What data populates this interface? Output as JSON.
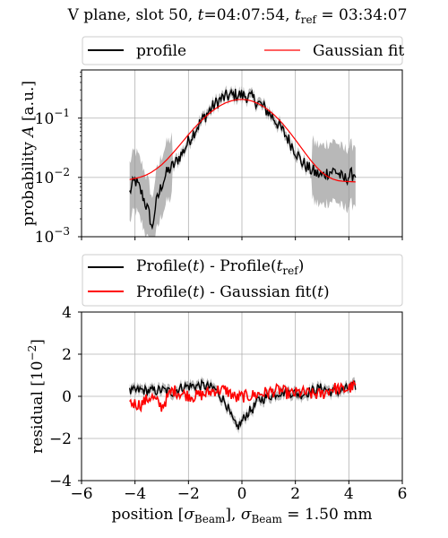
{
  "title": {
    "main": "V plane, slot 50, ",
    "t_sym": "t",
    "t_val": "=04:07:54, ",
    "tref_sym": "t",
    "tref_sub": "ref",
    "tref_val": " = 03:34:07"
  },
  "colors": {
    "profile": "#000000",
    "fit": "#ff0000",
    "band": "#9a9a9a",
    "grid": "#b0b0b0"
  },
  "chart_data": [
    {
      "type": "line",
      "yscale": "log",
      "ylim": [
        0.001,
        0.65
      ],
      "xlim": [
        -6,
        6
      ],
      "grid": true,
      "legend_position": "top",
      "ylabel": {
        "pre": "probability ",
        "sym": "A",
        "post": " [a.u.]"
      },
      "y_ticks": [
        {
          "v": 0.001,
          "mant": "10",
          "exp": "−3"
        },
        {
          "v": 0.01,
          "mant": "10",
          "exp": "−2"
        },
        {
          "v": 0.1,
          "mant": "10",
          "exp": "−1"
        }
      ],
      "series": [
        {
          "name": "profile",
          "key": "profile",
          "sigma": 0.5,
          "noise": 0.12,
          "x": [
            -4.2,
            -4.0,
            -3.8,
            -3.6,
            -3.45,
            -3.35,
            -3.25,
            -3.1,
            -3.0,
            -2.8,
            -2.5,
            -2.2,
            -2.0,
            -1.8,
            -1.5,
            -1.2,
            -1.0,
            -0.8,
            -0.5,
            -0.2,
            0.0,
            0.2,
            0.5,
            0.8,
            1.0,
            1.2,
            1.5,
            1.8,
            2.0,
            2.2,
            2.5,
            2.8,
            3.0,
            3.2,
            3.5,
            3.8,
            4.0,
            4.25
          ],
          "y": [
            0.0055,
            0.009,
            0.006,
            0.0035,
            0.0022,
            0.0012,
            0.003,
            0.0052,
            0.0075,
            0.012,
            0.017,
            0.027,
            0.04,
            0.058,
            0.09,
            0.135,
            0.172,
            0.208,
            0.238,
            0.246,
            0.244,
            0.236,
            0.2,
            0.152,
            0.125,
            0.098,
            0.062,
            0.039,
            0.028,
            0.019,
            0.014,
            0.0115,
            0.0105,
            0.0122,
            0.013,
            0.009,
            0.0105,
            0.012
          ]
        },
        {
          "name": "Gaussian fit",
          "key": "fit",
          "x": [
            -4.2,
            -4.0,
            -3.8,
            -3.6,
            -3.4,
            -3.2,
            -3.0,
            -2.8,
            -2.6,
            -2.4,
            -2.2,
            -2.0,
            -1.8,
            -1.6,
            -1.4,
            -1.2,
            -1.0,
            -0.8,
            -0.6,
            -0.4,
            -0.2,
            0.0,
            0.2,
            0.4,
            0.6,
            0.8,
            1.0,
            1.2,
            1.4,
            1.6,
            1.8,
            2.0,
            2.2,
            2.4,
            2.6,
            2.8,
            3.0,
            3.2,
            3.4,
            3.6,
            3.8,
            4.0,
            4.25
          ],
          "y": [
            0.0092,
            0.0096,
            0.0101,
            0.0109,
            0.0121,
            0.0139,
            0.0164,
            0.0201,
            0.0252,
            0.0321,
            0.0411,
            0.0526,
            0.0666,
            0.0832,
            0.1019,
            0.1223,
            0.1433,
            0.1636,
            0.1816,
            0.1958,
            0.2047,
            0.2072,
            0.203,
            0.1925,
            0.1767,
            0.1573,
            0.1358,
            0.1138,
            0.0927,
            0.0735,
            0.0568,
            0.0432,
            0.0326,
            0.0246,
            0.0188,
            0.0148,
            0.0121,
            0.0104,
            0.0094,
            0.0088,
            0.0086,
            0.0085,
            0.0084
          ]
        }
      ]
    },
    {
      "type": "line",
      "xlim": [
        -6,
        6
      ],
      "ylim": [
        -4,
        4
      ],
      "grid": true,
      "legend_position": "top",
      "xlabel": {
        "pre": "position [",
        "sym": "σ",
        "sub": "Beam",
        "mid": "], ",
        "sym2": "σ",
        "sub2": "Beam",
        "post": " = 1.50 mm"
      },
      "ylabel": {
        "pre": "residual [10",
        "exp": "−2",
        "post": "]"
      },
      "x_ticks": [
        -6,
        -4,
        -2,
        0,
        2,
        4,
        6
      ],
      "x_tick_labels": [
        "−6",
        "−4",
        "−2",
        "0",
        "2",
        "4",
        "6"
      ],
      "y_ticks": [
        -4,
        -2,
        0,
        2,
        4
      ],
      "y_tick_labels": [
        "−4",
        "−2",
        "0",
        "2",
        "4"
      ],
      "series": [
        {
          "name": "Profile(t) - Profile(tref)",
          "key": "diff",
          "color": "#000000",
          "sigma": 0.2,
          "noise": 0.25,
          "x": [
            -4.2,
            -3.8,
            -3.4,
            -3.0,
            -2.6,
            -2.2,
            -1.8,
            -1.4,
            -1.0,
            -0.8,
            -0.6,
            -0.4,
            -0.2,
            0.0,
            0.2,
            0.4,
            0.6,
            1.0,
            1.4,
            1.8,
            2.2,
            2.6,
            3.0,
            3.4,
            3.8,
            4.25
          ],
          "y": [
            0.2,
            0.3,
            0.25,
            0.3,
            0.2,
            0.45,
            0.5,
            0.5,
            0.35,
            0.0,
            -0.3,
            -1.0,
            -1.5,
            -1.2,
            -0.8,
            -0.6,
            -0.2,
            0.0,
            0.2,
            0.2,
            0.1,
            0.25,
            0.4,
            0.2,
            0.3,
            0.5
          ]
        },
        {
          "name": "Profile(t) - Gaussian fit(t)",
          "key": "res",
          "color": "#ff0000",
          "noise": 0.3,
          "x": [
            -4.2,
            -3.8,
            -3.4,
            -3.0,
            -2.6,
            -2.2,
            -1.8,
            -1.4,
            -1.0,
            -0.6,
            -0.2,
            0.0,
            0.2,
            0.6,
            1.0,
            1.4,
            1.8,
            2.2,
            2.6,
            3.0,
            3.4,
            3.8,
            4.25
          ],
          "y": [
            -0.3,
            -0.4,
            0.0,
            -0.5,
            0.3,
            0.1,
            0.0,
            0.1,
            0.3,
            0.3,
            -0.1,
            0.0,
            0.0,
            0.1,
            0.2,
            0.3,
            0.1,
            0.2,
            0.1,
            0.1,
            0.4,
            0.3,
            0.5
          ]
        }
      ]
    }
  ],
  "legend1": {
    "profile": "profile",
    "fit": "Gaussian fit"
  },
  "legend2": {
    "diff": {
      "a": "Profile(",
      "t": "t",
      "b": ") - Profile(",
      "t2": "t",
      "sub": "ref",
      "c": ")"
    },
    "res": {
      "a": "Profile(",
      "t": "t",
      "b": ") - Gaussian fit(",
      "t2": "t",
      "c": ")"
    }
  }
}
